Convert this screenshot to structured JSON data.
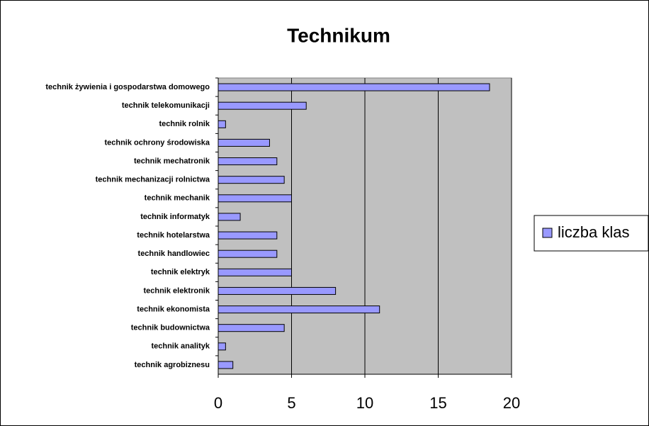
{
  "chart_data": {
    "type": "barh",
    "title": "Technikum",
    "categories": [
      "technik żywienia i gospodarstwa domowego",
      "technik telekomunikacji",
      "technik rolnik",
      "technik ochrony środowiska",
      "technik mechatronik",
      "technik mechanizacji rolnictwa",
      "technik mechanik",
      "technik informatyk",
      "technik hotelarstwa",
      "technik handlowiec",
      "technik elektryk",
      "technik elektronik",
      "technik ekonomista",
      "technik budownictwa",
      "technik analityk",
      "technik agrobiznesu"
    ],
    "series": [
      {
        "name": "liczba klas",
        "color": "#9999ff",
        "values": [
          18.5,
          6,
          0.5,
          3.5,
          4,
          4.5,
          5,
          1.5,
          4,
          4,
          5,
          8,
          11,
          4.5,
          0.5,
          1
        ]
      }
    ],
    "xlim": [
      0,
      20
    ],
    "xticks": [
      0,
      5,
      10,
      15,
      20
    ],
    "grid": true,
    "legend": "right"
  }
}
